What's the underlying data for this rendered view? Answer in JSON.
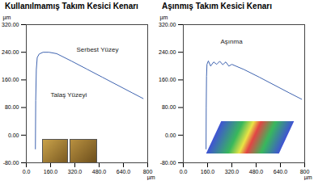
{
  "chart_data": [
    {
      "type": "line",
      "title": "Kullanılmamış Takım Kesici Kenarı",
      "x_label": "µm",
      "y_label": "µm",
      "x": [
        60,
        62,
        66,
        72,
        85,
        110,
        150,
        200,
        300,
        400,
        500,
        600,
        700,
        770
      ],
      "values": [
        -40,
        100,
        190,
        225,
        235,
        240,
        240,
        236,
        214,
        191,
        168,
        145,
        122,
        106
      ],
      "color": "#3f64b0",
      "xlim": [
        0,
        800
      ],
      "xticks": [
        {
          "value": 0,
          "label": "0.0"
        },
        {
          "value": 160,
          "label": "160.0"
        },
        {
          "value": 320,
          "label": "320.0"
        },
        {
          "value": 480,
          "label": "480.0"
        },
        {
          "value": 640,
          "label": "640.0"
        },
        800
      ],
      "ylim": [
        -80,
        320
      ],
      "yticks": [
        {
          "value": -80,
          "label": "-80.00"
        },
        {
          "value": 0,
          "label": "0.00"
        },
        {
          "value": 80,
          "label": "80.00"
        },
        {
          "value": 160,
          "label": "160.00"
        },
        {
          "value": 240,
          "label": "240.00"
        },
        {
          "value": 320,
          "label": "320.00"
        }
      ],
      "annotations": [
        "Serbest Yüzey",
        "Talaş Yüzeyi"
      ],
      "grid": false
    },
    {
      "type": "line",
      "title": "Aşınmış Takım Kesici Kenarı",
      "x_label": "µm",
      "y_label": "µm",
      "x": [
        150,
        151,
        153,
        156,
        165,
        180,
        200,
        220,
        240,
        260,
        280,
        300,
        320,
        400,
        500,
        600,
        700,
        780
      ],
      "values": [
        -40,
        80,
        170,
        205,
        215,
        200,
        212,
        205,
        214,
        204,
        212,
        200,
        205,
        190,
        168,
        145,
        122,
        104
      ],
      "color": "#3f64b0",
      "xlim": [
        0,
        800
      ],
      "xticks": [
        {
          "value": 0,
          "label": "0.0"
        },
        {
          "value": 160,
          "label": "160.0"
        },
        {
          "value": 320,
          "label": "320.0"
        },
        {
          "value": 480,
          "label": "480.0"
        },
        {
          "value": 640,
          "label": "640.0"
        },
        800
      ],
      "ylim": [
        -80,
        320
      ],
      "yticks": [
        {
          "value": -80,
          "label": "-80.00"
        },
        {
          "value": 0,
          "label": "0.00"
        },
        {
          "value": 80,
          "label": "80.00"
        },
        {
          "value": 160,
          "label": "160.00"
        },
        {
          "value": 240,
          "label": "240.00"
        },
        {
          "value": 320,
          "label": "320.00"
        }
      ],
      "annotations": [
        "Aşınma"
      ],
      "grid": false
    }
  ]
}
